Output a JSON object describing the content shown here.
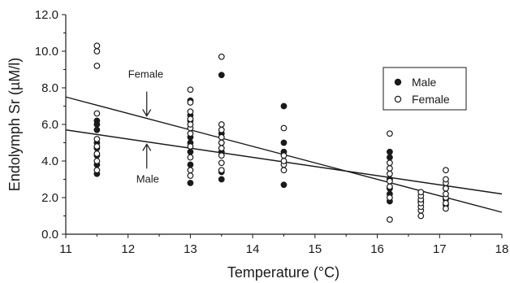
{
  "chart_data": {
    "type": "scatter",
    "xlabel": "Temperature (°C)",
    "ylabel": "Endolymph Sr (µM/l)",
    "xlim": [
      11,
      18
    ],
    "ylim": [
      0,
      12
    ],
    "xticks": [
      "11",
      "12",
      "13",
      "14",
      "15",
      "16",
      "17",
      "18"
    ],
    "yticks": [
      "0.0",
      "2.0",
      "4.0",
      "6.0",
      "8.0",
      "10.0",
      "12.0"
    ],
    "grid": false,
    "legend_position": "top-right",
    "series": [
      {
        "name": "Male",
        "marker": "filled-circle",
        "points": [
          [
            11.5,
            3.3
          ],
          [
            11.5,
            3.8
          ],
          [
            11.5,
            4.3
          ],
          [
            11.5,
            4.7
          ],
          [
            11.5,
            5.0
          ],
          [
            11.5,
            5.7
          ],
          [
            11.5,
            6.0
          ],
          [
            11.5,
            6.2
          ],
          [
            13.0,
            2.8
          ],
          [
            13.0,
            3.8
          ],
          [
            13.0,
            4.5
          ],
          [
            13.0,
            5.0
          ],
          [
            13.0,
            5.3
          ],
          [
            13.0,
            6.2
          ],
          [
            13.0,
            6.5
          ],
          [
            13.0,
            7.3
          ],
          [
            13.5,
            3.0
          ],
          [
            13.5,
            3.4
          ],
          [
            13.5,
            4.5
          ],
          [
            13.5,
            5.0
          ],
          [
            13.5,
            5.5
          ],
          [
            13.5,
            8.7
          ],
          [
            14.5,
            2.7
          ],
          [
            14.5,
            4.5
          ],
          [
            14.5,
            5.0
          ],
          [
            14.5,
            7.0
          ],
          [
            16.2,
            1.8
          ],
          [
            16.2,
            2.2
          ],
          [
            16.2,
            2.5
          ],
          [
            16.2,
            3.0
          ],
          [
            16.2,
            4.2
          ],
          [
            16.2,
            4.5
          ],
          [
            16.7,
            1.8
          ],
          [
            17.1,
            1.6
          ],
          [
            17.1,
            1.9
          ],
          [
            17.1,
            2.5
          ]
        ]
      },
      {
        "name": "Female",
        "marker": "open-circle",
        "points": [
          [
            11.5,
            3.5
          ],
          [
            11.5,
            4.0
          ],
          [
            11.5,
            4.4
          ],
          [
            11.5,
            4.8
          ],
          [
            11.5,
            5.2
          ],
          [
            11.5,
            6.6
          ],
          [
            11.5,
            9.2
          ],
          [
            11.5,
            10.0
          ],
          [
            11.5,
            10.3
          ],
          [
            13.0,
            3.2
          ],
          [
            13.0,
            3.5
          ],
          [
            13.0,
            4.2
          ],
          [
            13.0,
            4.8
          ],
          [
            13.0,
            5.5
          ],
          [
            13.0,
            5.8
          ],
          [
            13.0,
            6.0
          ],
          [
            13.0,
            6.3
          ],
          [
            13.0,
            6.7
          ],
          [
            13.0,
            7.2
          ],
          [
            13.0,
            7.9
          ],
          [
            13.5,
            3.5
          ],
          [
            13.5,
            3.9
          ],
          [
            13.5,
            4.3
          ],
          [
            13.5,
            4.7
          ],
          [
            13.5,
            5.0
          ],
          [
            13.5,
            5.3
          ],
          [
            13.5,
            5.7
          ],
          [
            13.5,
            6.0
          ],
          [
            13.5,
            9.7
          ],
          [
            14.5,
            3.5
          ],
          [
            14.5,
            3.8
          ],
          [
            14.5,
            4.0
          ],
          [
            14.5,
            4.3
          ],
          [
            14.5,
            5.8
          ],
          [
            16.2,
            0.8
          ],
          [
            16.2,
            2.0
          ],
          [
            16.2,
            2.6
          ],
          [
            16.2,
            2.9
          ],
          [
            16.2,
            3.3
          ],
          [
            16.2,
            3.6
          ],
          [
            16.2,
            3.9
          ],
          [
            16.2,
            5.5
          ],
          [
            16.7,
            1.0
          ],
          [
            16.7,
            1.3
          ],
          [
            16.7,
            1.5
          ],
          [
            16.7,
            1.7
          ],
          [
            16.7,
            1.9
          ],
          [
            16.7,
            2.1
          ],
          [
            16.7,
            2.3
          ],
          [
            17.1,
            1.4
          ],
          [
            17.1,
            1.7
          ],
          [
            17.1,
            2.0
          ],
          [
            17.1,
            2.2
          ],
          [
            17.1,
            2.5
          ],
          [
            17.1,
            2.8
          ],
          [
            17.1,
            3.0
          ],
          [
            17.1,
            3.5
          ]
        ]
      }
    ],
    "fit_lines": [
      {
        "series": "Female",
        "label": "Female",
        "x": [
          11,
          18
        ],
        "y": [
          7.5,
          1.2
        ]
      },
      {
        "series": "Male",
        "label": "Male",
        "x": [
          11,
          18
        ],
        "y": [
          5.7,
          2.2
        ]
      }
    ],
    "legend": [
      "Male",
      "Female"
    ]
  }
}
